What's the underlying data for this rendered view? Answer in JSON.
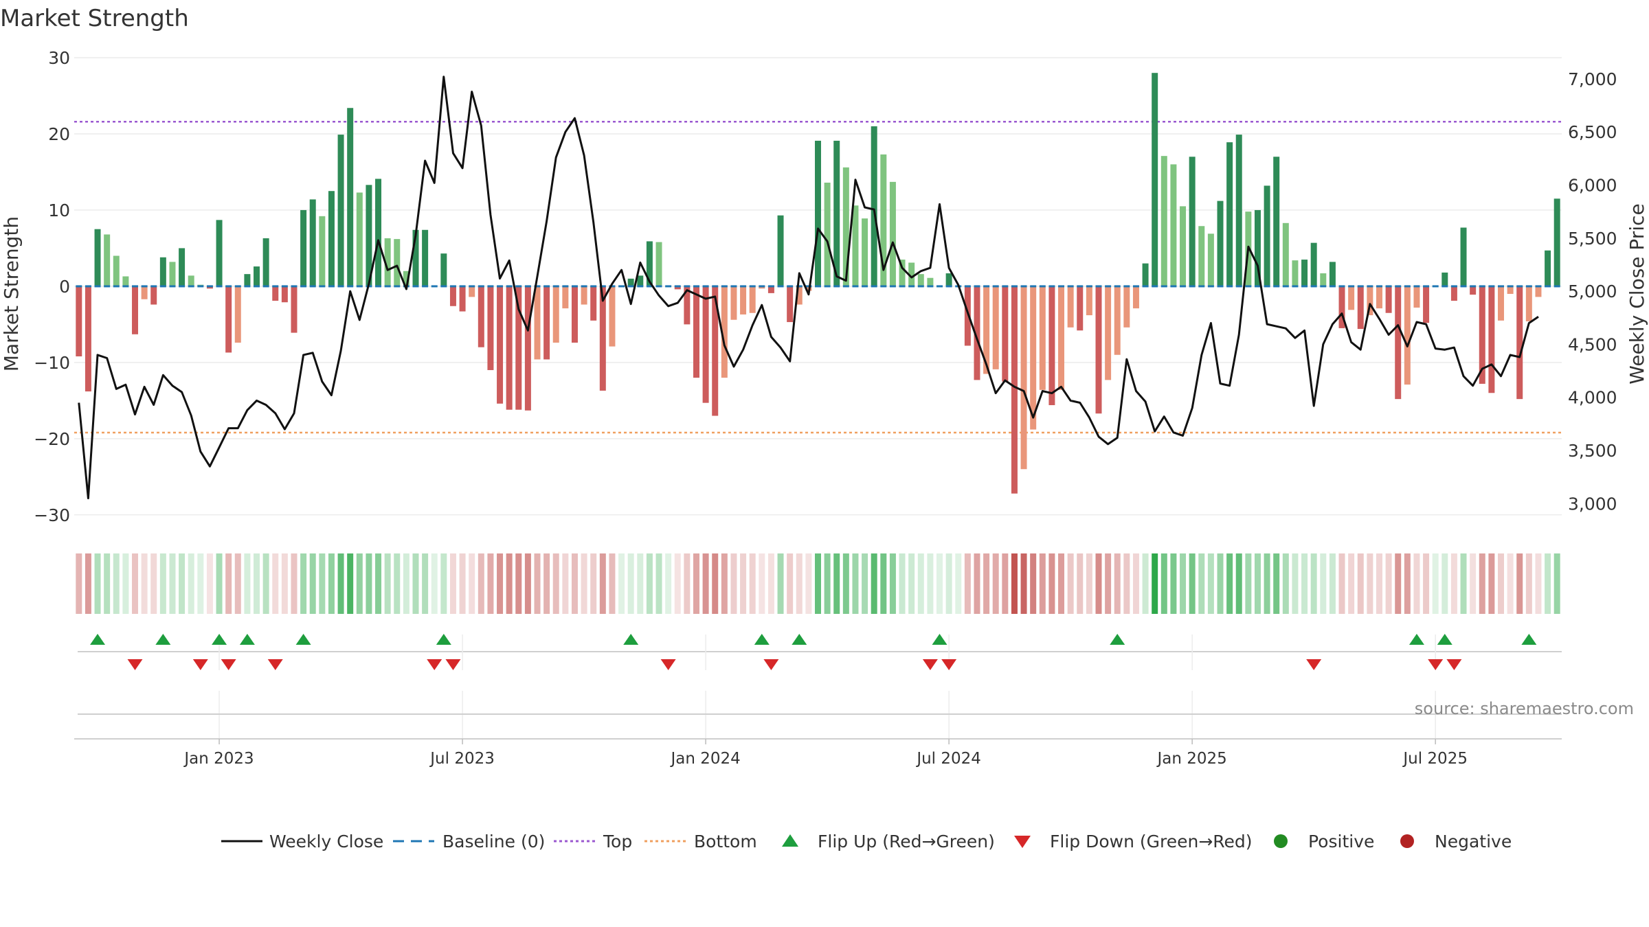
{
  "chart_data": {
    "type": "bar",
    "title": "Market Strength",
    "source": "source: sharemaestro.com",
    "y_left": {
      "label": "Market Strength",
      "ylim": [
        -32,
        30
      ],
      "ticks": [
        30,
        20,
        10,
        0,
        -10,
        -20,
        -30
      ]
    },
    "y_right": {
      "label": "Weekly Close Price",
      "ylim": [
        2750,
        7200
      ],
      "ticks": [
        7000,
        6500,
        6000,
        5500,
        5000,
        4500,
        4000,
        3500,
        3000
      ],
      "tick_labels": [
        "7,000",
        "6,500",
        "6,000",
        "5,500",
        "5,000",
        "4,500",
        "4,000",
        "3,500",
        "3,000"
      ]
    },
    "x_axis": {
      "ticks": [
        {
          "index": 15,
          "label": "Jan 2023"
        },
        {
          "index": 41,
          "label": "Jul 2023"
        },
        {
          "index": 67,
          "label": "Jan 2024"
        },
        {
          "index": 93,
          "label": "Jul 2024"
        },
        {
          "index": 119,
          "label": "Jan 2025"
        },
        {
          "index": 145,
          "label": "Jul 2025"
        }
      ]
    },
    "thresholds": {
      "top": 21.6,
      "bottom": -19.2,
      "baseline": 0
    },
    "strength": [
      -9.2,
      -13.8,
      7.5,
      6.8,
      4.0,
      1.3,
      -6.3,
      -1.7,
      -2.4,
      3.8,
      3.2,
      5.0,
      1.4,
      0.2,
      -0.3,
      8.7,
      -8.7,
      -7.4,
      1.6,
      2.6,
      6.3,
      -1.9,
      -2.1,
      -6.1,
      10.0,
      11.4,
      9.2,
      12.5,
      19.9,
      23.4,
      12.3,
      13.3,
      14.1,
      6.3,
      6.2,
      2.0,
      7.4,
      7.4,
      0.0,
      4.3,
      -2.6,
      -3.3,
      -1.4,
      -8.0,
      -11.0,
      -15.4,
      -16.2,
      -16.2,
      -16.3,
      -9.6,
      -9.6,
      -7.4,
      -2.9,
      -7.4,
      -2.4,
      -4.5,
      -13.7,
      -7.9,
      0.0,
      1.0,
      1.4,
      5.9,
      5.8,
      0.0,
      -0.4,
      -5.0,
      -12.0,
      -15.3,
      -17.0,
      -12.0,
      -4.4,
      -3.7,
      -3.5,
      -0.3,
      -0.9,
      9.3,
      -4.7,
      -2.4,
      -0.6,
      19.1,
      13.6,
      19.1,
      15.6,
      10.6,
      8.9,
      21.0,
      17.3,
      13.7,
      3.5,
      3.1,
      1.6,
      1.1,
      0.0,
      1.7,
      0.0,
      -7.8,
      -12.3,
      -11.5,
      -10.9,
      -12.5,
      -27.2,
      -24.0,
      -18.8,
      -13.6,
      -15.6,
      -13.6,
      -5.4,
      -5.8,
      -3.8,
      -16.7,
      -12.3,
      -9.0,
      -5.4,
      -2.9,
      3.0,
      28.0,
      17.1,
      16.0,
      10.5,
      17.0,
      7.9,
      6.9,
      11.2,
      18.9,
      19.9,
      9.8,
      10.0,
      13.2,
      17.0,
      8.3,
      3.4,
      3.5,
      5.7,
      1.7,
      3.2,
      -5.5,
      -3.1,
      -5.6,
      -3.8,
      -2.9,
      -3.5,
      -14.8,
      -12.9,
      -2.8,
      -4.8,
      0.0,
      1.8,
      -1.9,
      7.7,
      -1.1,
      -12.8,
      -14.0,
      -4.5,
      -1.0,
      -14.8,
      -4.6,
      -1.4,
      4.7,
      11.5
    ],
    "weekly_close": [
      3950,
      3050,
      4400,
      4370,
      4080,
      4120,
      3840,
      4100,
      3930,
      4210,
      4110,
      4050,
      3830,
      3490,
      3350,
      3530,
      3710,
      3710,
      3880,
      3970,
      3930,
      3850,
      3700,
      3850,
      4400,
      4420,
      4150,
      4020,
      4440,
      5000,
      4730,
      5070,
      5480,
      5200,
      5240,
      5020,
      5530,
      6230,
      6020,
      7020,
      6300,
      6160,
      6880,
      6560,
      5720,
      5120,
      5290,
      4830,
      4630,
      5140,
      5660,
      6260,
      6500,
      6630,
      6280,
      5650,
      4910,
      5070,
      5200,
      4880,
      5270,
      5090,
      4960,
      4860,
      4890,
      5010,
      4970,
      4930,
      4950,
      4490,
      4290,
      4450,
      4680,
      4870,
      4570,
      4470,
      4340,
      5170,
      4970,
      5590,
      5470,
      5140,
      5100,
      6050,
      5790,
      5770,
      5200,
      5460,
      5220,
      5130,
      5190,
      5220,
      5820,
      5220,
      5060,
      4800,
      4550,
      4310,
      4040,
      4160,
      4100,
      4060,
      3810,
      4060,
      4040,
      4100,
      3970,
      3950,
      3810,
      3630,
      3560,
      3620,
      4360,
      4060,
      3960,
      3680,
      3820,
      3670,
      3640,
      3900,
      4400,
      4700,
      4130,
      4110,
      4590,
      5420,
      5240,
      4690,
      4670,
      4650,
      4560,
      4630,
      3920,
      4500,
      4690,
      4790,
      4520,
      4450,
      4880,
      4740,
      4590,
      4680,
      4480,
      4710,
      4690,
      4460,
      4450,
      4470,
      4200,
      4110,
      4270,
      4310,
      4200,
      4400,
      4380,
      4700,
      4760
    ],
    "flip_up_index": [
      2,
      9,
      15,
      18,
      24,
      39,
      59,
      73,
      77,
      92,
      111,
      143,
      146,
      155
    ],
    "flip_down_index": [
      6,
      13,
      16,
      21,
      38,
      40,
      63,
      74,
      91,
      93,
      132,
      145,
      147
    ],
    "legend": [
      {
        "key": "weekly_close",
        "label": "Weekly Close"
      },
      {
        "key": "baseline",
        "label": "Baseline (0)"
      },
      {
        "key": "top",
        "label": "Top"
      },
      {
        "key": "bottom",
        "label": "Bottom"
      },
      {
        "key": "flip_up",
        "label": "Flip Up (Red→Green)"
      },
      {
        "key": "flip_down",
        "label": "Flip Down (Green→Red)"
      },
      {
        "key": "positive",
        "label": "Positive"
      },
      {
        "key": "negative",
        "label": "Negative"
      }
    ],
    "colors": {
      "strong_pos": "#2e8b57",
      "weak_pos": "#7fc47f",
      "strong_neg": "#cd5c5c",
      "weak_neg": "#e9967a",
      "top": "#9b59d0",
      "bottom": "#f0a060",
      "baseline": "#1f77b4",
      "flip_up": "#1e9e3e",
      "flip_down": "#d62728",
      "positive_dot": "#228b22",
      "negative_dot": "#b22222",
      "line": "#111111",
      "text": "#333333"
    }
  }
}
